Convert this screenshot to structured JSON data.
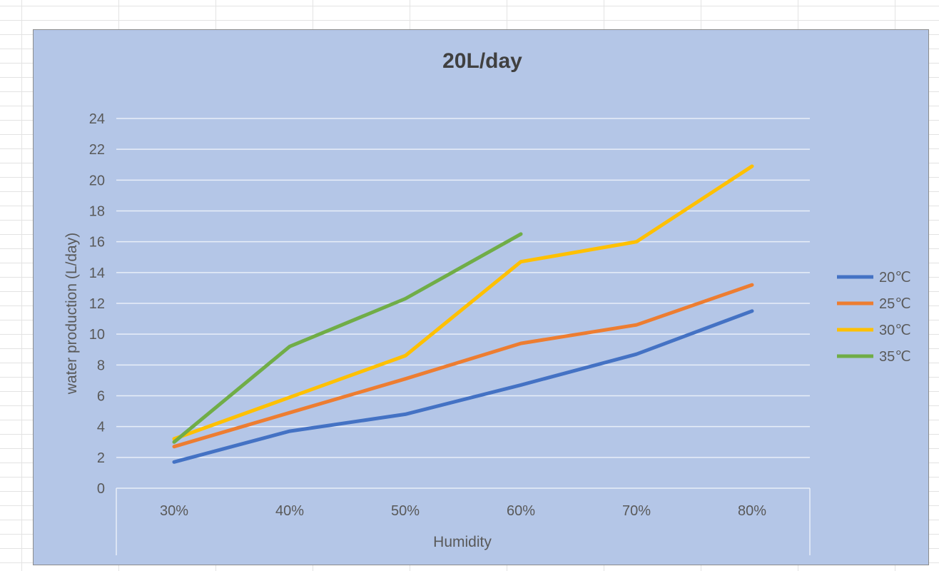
{
  "chart_data": {
    "type": "line",
    "title": "20L/day",
    "xlabel": "Humidity",
    "ylabel": "water production (L/day)",
    "categories": [
      "30%",
      "40%",
      "50%",
      "60%",
      "70%",
      "80%"
    ],
    "ylim": [
      0,
      24
    ],
    "yticks": [
      "0",
      "2",
      "4",
      "6",
      "8",
      "10",
      "12",
      "14",
      "16",
      "18",
      "20",
      "22",
      "24"
    ],
    "grid": true,
    "legend_position": "right",
    "series": [
      {
        "name": "20℃",
        "color": "#4472c4",
        "values": [
          1.7,
          3.7,
          4.8,
          6.7,
          8.7,
          11.5
        ]
      },
      {
        "name": "25℃",
        "color": "#ed7d31",
        "values": [
          2.7,
          4.9,
          7.1,
          9.4,
          10.6,
          13.2
        ]
      },
      {
        "name": "30℃",
        "color": "#ffc000",
        "values": [
          3.2,
          5.9,
          8.6,
          14.7,
          16.0,
          20.9
        ]
      },
      {
        "name": "35℃",
        "color": "#70ad47",
        "values": [
          3.0,
          9.2,
          12.3,
          16.5,
          null,
          null
        ]
      }
    ]
  }
}
